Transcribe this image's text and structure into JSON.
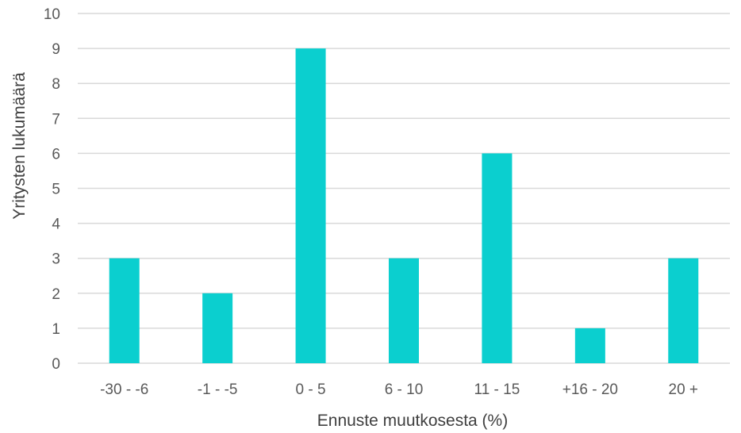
{
  "chart_data": {
    "type": "bar",
    "title": "",
    "xlabel": "Ennuste muutkosesta (%)",
    "ylabel": "Yritysten lukumäärä",
    "categories": [
      "-30 - -6",
      "-1 - -5",
      "0 - 5",
      "6 - 10",
      "11 - 15",
      "+16 - 20",
      "20 +"
    ],
    "values": [
      3,
      2,
      9,
      3,
      6,
      1,
      3
    ],
    "ylim": [
      0,
      10
    ],
    "yticks": [
      0,
      1,
      2,
      3,
      4,
      5,
      6,
      7,
      8,
      9,
      10
    ],
    "grid": true,
    "legend": "none",
    "bar_color": "#0BCFCF"
  }
}
